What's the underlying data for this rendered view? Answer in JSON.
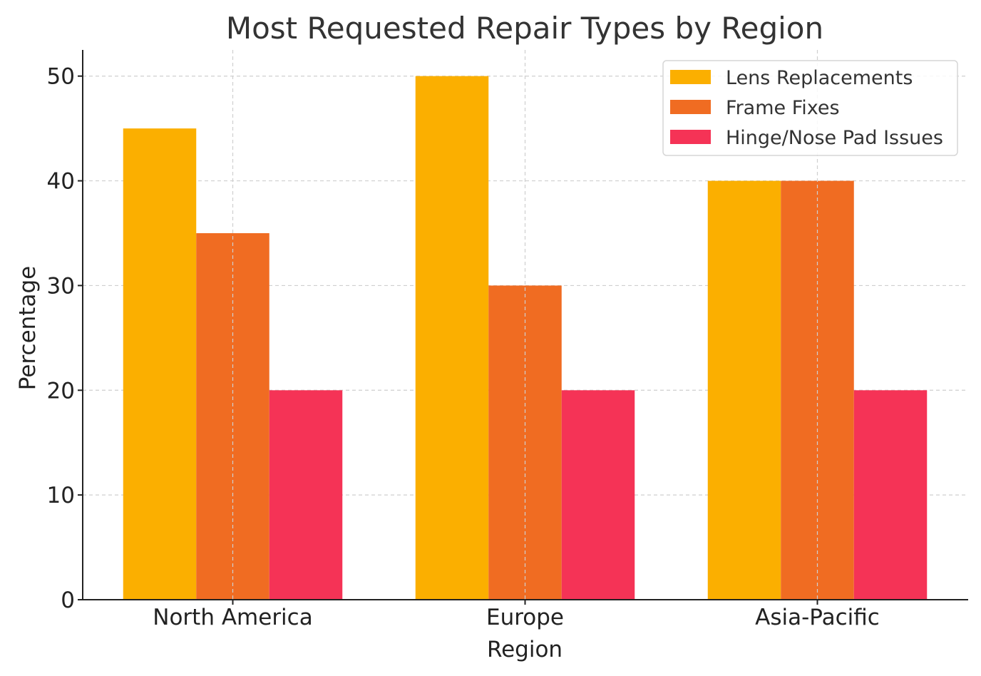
{
  "chart_data": {
    "type": "bar",
    "title": "Most Requested Repair Types by Region",
    "xlabel": "Region",
    "ylabel": "Percentage",
    "categories": [
      "North America",
      "Europe",
      "Asia-Pacific"
    ],
    "series": [
      {
        "name": "Lens Replacements",
        "color": "#FBAF00",
        "values": [
          45,
          50,
          40
        ]
      },
      {
        "name": "Frame Fixes",
        "color": "#F06C22",
        "values": [
          35,
          30,
          40
        ]
      },
      {
        "name": "Hinge/Nose Pad Issues",
        "color": "#F53356",
        "values": [
          20,
          20,
          20
        ]
      }
    ],
    "ylim": [
      0,
      52.5
    ],
    "yticks": [
      0,
      10,
      20,
      30,
      40,
      50
    ],
    "grid": true,
    "legend_position": "top-right"
  }
}
